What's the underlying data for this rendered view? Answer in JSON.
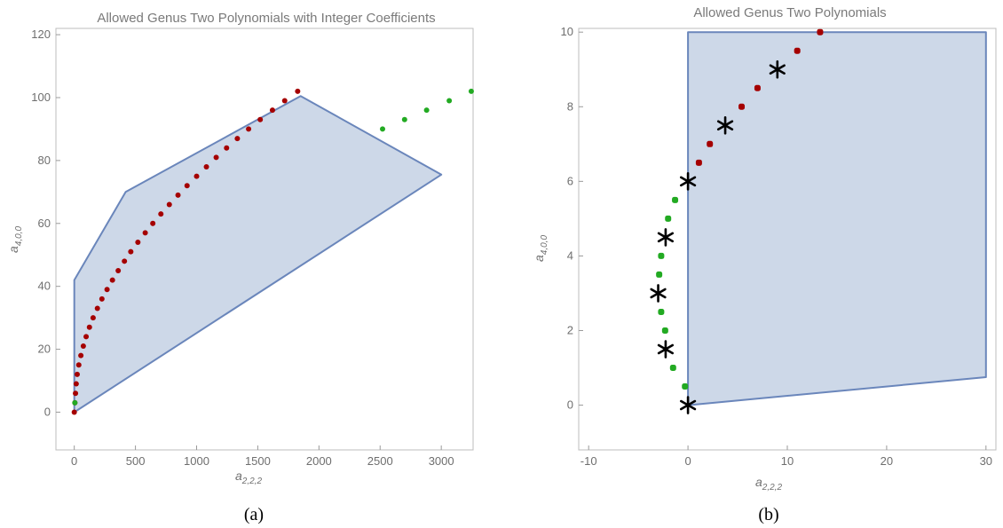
{
  "chart_data": [
    {
      "type": "scatter",
      "caption": "(a)",
      "title": "Allowed Genus Two Polynomials with Integer Coefficients",
      "xlabel_base": "a",
      "xlabel_sub": "2,2,2",
      "ylabel_base": "a",
      "ylabel_sub": "4,0,0",
      "xlim": [
        -150,
        3260
      ],
      "ylim": [
        -12,
        122
      ],
      "xticks": [
        0,
        500,
        1000,
        1500,
        2000,
        2500,
        3000
      ],
      "yticks": [
        0,
        20,
        40,
        60,
        80,
        100,
        120
      ],
      "colors": {
        "region_fill": "#cdd8e8",
        "region_edge": "#6a86bb",
        "red": "#a50000",
        "green": "#22aa22"
      },
      "region": [
        [
          0,
          0
        ],
        [
          3000,
          75.5
        ],
        [
          1850,
          100.5
        ],
        [
          420,
          70
        ],
        [
          0,
          42
        ]
      ],
      "series": [
        {
          "color": "red",
          "points": [
            [
              0,
              0
            ],
            [
              5,
              3
            ],
            [
              10,
              6
            ],
            [
              16,
              9
            ],
            [
              24,
              12
            ],
            [
              37,
              15
            ],
            [
              54,
              18
            ],
            [
              74,
              21
            ],
            [
              97,
              24
            ],
            [
              124,
              27
            ],
            [
              154,
              30
            ],
            [
              189,
              33
            ],
            [
              226,
              36
            ],
            [
              268,
              39
            ],
            [
              312,
              42
            ],
            [
              359,
              45
            ],
            [
              410,
              48
            ],
            [
              462,
              51
            ],
            [
              520,
              54
            ],
            [
              580,
              57
            ],
            [
              642,
              60
            ],
            [
              708,
              63
            ],
            [
              777,
              66
            ],
            [
              848,
              69
            ],
            [
              922,
              72
            ],
            [
              1000,
              75
            ],
            [
              1080,
              78
            ],
            [
              1160,
              81
            ],
            [
              1245,
              84
            ],
            [
              1333,
              87
            ],
            [
              1425,
              90
            ],
            [
              1520,
              93
            ],
            [
              1620,
              96
            ],
            [
              1720,
              99
            ],
            [
              1826,
              102
            ]
          ]
        },
        {
          "color": "green",
          "points": [
            [
              5,
              3
            ],
            [
              2520,
              90
            ],
            [
              2700,
              93
            ],
            [
              2880,
              96
            ],
            [
              3065,
              99
            ],
            [
              3245,
              102
            ]
          ]
        }
      ]
    },
    {
      "type": "scatter",
      "caption": "(b)",
      "title": "Allowed Genus Two Polynomials",
      "xlabel_base": "a",
      "xlabel_sub": "2,2,2",
      "ylabel_base": "a",
      "ylabel_sub": "4,0,0",
      "xlim": [
        -11,
        31
      ],
      "ylim": [
        -1.2,
        10.1
      ],
      "xticks": [
        -10,
        0,
        10,
        20,
        30
      ],
      "yticks": [
        0,
        2,
        4,
        6,
        8,
        10
      ],
      "colors": {
        "region_fill": "#cdd8e8",
        "region_edge": "#6a86bb",
        "red": "#a50000",
        "green": "#22aa22",
        "star": "#000000"
      },
      "region": [
        [
          0,
          0
        ],
        [
          30,
          0.75
        ],
        [
          30,
          10
        ],
        [
          0,
          10
        ]
      ],
      "series": [
        {
          "color": "green",
          "points": [
            [
              -0.3,
              0.5
            ],
            [
              -1.5,
              1
            ],
            [
              -2.3,
              2
            ],
            [
              -2.7,
              2.5
            ],
            [
              -2.9,
              3.5
            ],
            [
              -2.7,
              4
            ],
            [
              -2,
              5
            ],
            [
              -1.3,
              5.5
            ]
          ]
        },
        {
          "color": "red",
          "points": [
            [
              1.1,
              6.5
            ],
            [
              2.2,
              7
            ],
            [
              5.4,
              8
            ],
            [
              7,
              8.5
            ],
            [
              11,
              9.5
            ],
            [
              13.3,
              10
            ]
          ]
        },
        {
          "color": "star",
          "points": [
            [
              0,
              0
            ],
            [
              -2.25,
              1.5
            ],
            [
              -3,
              3
            ],
            [
              -2.25,
              4.5
            ],
            [
              0,
              6
            ],
            [
              3.75,
              7.5
            ],
            [
              9,
              9
            ]
          ]
        }
      ]
    }
  ]
}
